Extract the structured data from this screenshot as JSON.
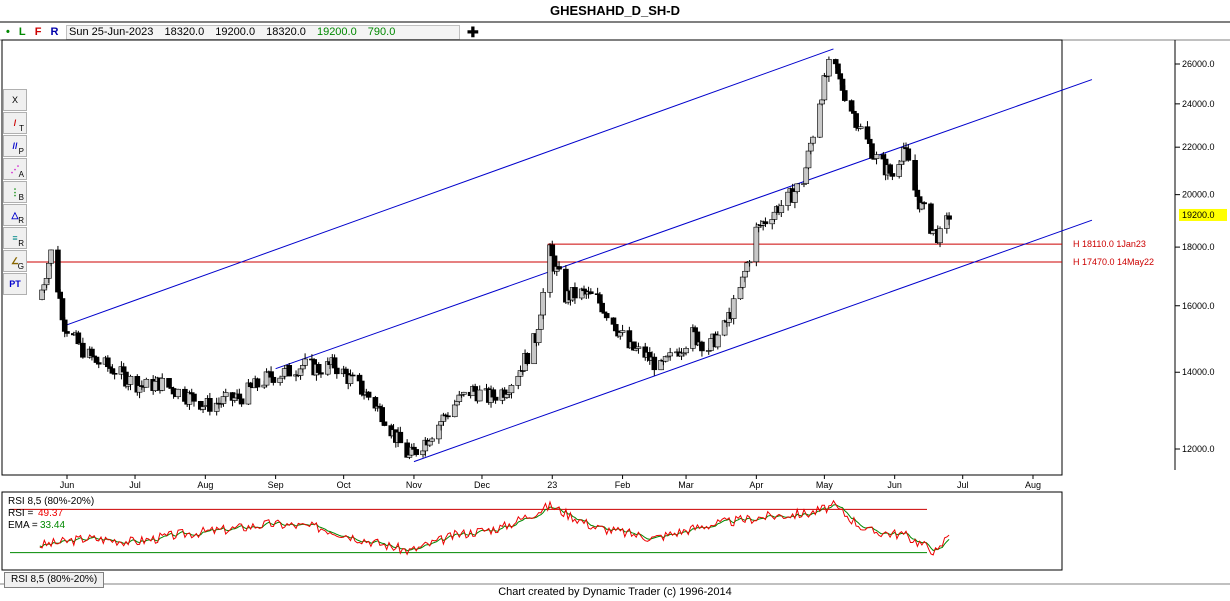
{
  "title": "GHESHAHD_D_SH-D",
  "info": {
    "indicators": [
      "L",
      "F",
      "R"
    ],
    "date": "Sun 25-Jun-2023",
    "open": "18320.0",
    "high": "19200.0",
    "low": "18320.0",
    "close": "19200.0",
    "volume": "790.0"
  },
  "toolbar": {
    "close_label": "X",
    "tools": [
      {
        "name": "trendline-tool",
        "glyph": "/",
        "sub": "T"
      },
      {
        "name": "parallel-tool",
        "glyph": "//",
        "sub": "P"
      },
      {
        "name": "andrews-tool",
        "glyph": "⋰",
        "sub": "A"
      },
      {
        "name": "fib-tool",
        "glyph": "⋮",
        "sub": "B"
      },
      {
        "name": "ratio-tool",
        "glyph": "△",
        "sub": "R"
      },
      {
        "name": "retrace-tool",
        "glyph": "≡",
        "sub": "R"
      },
      {
        "name": "gann-tool",
        "glyph": "∠",
        "sub": "G"
      },
      {
        "name": "pt-tool",
        "glyph": "PT",
        "sub": ""
      }
    ]
  },
  "colors": {
    "channel": "#0000cc",
    "hline": "#cc0000",
    "rsi": "#ee0000",
    "ema": "#008800",
    "current_price_bg": "#ffff00"
  },
  "chart_data": {
    "type": "candlestick",
    "title": "GHESHAHD_D_SH-D",
    "x_months": [
      "Jun",
      "Jul",
      "Aug",
      "Sep",
      "Oct",
      "Nov",
      "Dec",
      "23",
      "Feb",
      "Mar",
      "Apr",
      "May",
      "Jun",
      "Jul",
      "Aug"
    ],
    "y_ticks": [
      12000,
      14000,
      16000,
      18000,
      20000,
      22000,
      24000,
      26000
    ],
    "y_tick_labels": [
      "12000.0",
      "14000.0",
      "16000.0",
      "18000.0",
      "20000.0",
      "22000.0",
      "24000.0",
      "26000.0"
    ],
    "ylim": [
      11400,
      26800
    ],
    "log_scale": true,
    "current_price": 19200,
    "current_price_label": "19200.0",
    "close_path": [
      {
        "date": "2022-05-20",
        "close": 16200
      },
      {
        "date": "2022-05-25",
        "close": 17800
      },
      {
        "date": "2022-05-31",
        "close": 15400
      },
      {
        "date": "2022-06-07",
        "close": 14700
      },
      {
        "date": "2022-06-14",
        "close": 14300
      },
      {
        "date": "2022-06-21",
        "close": 14100
      },
      {
        "date": "2022-06-28",
        "close": 13800
      },
      {
        "date": "2022-07-05",
        "close": 13600
      },
      {
        "date": "2022-07-12",
        "close": 13700
      },
      {
        "date": "2022-07-19",
        "close": 13500
      },
      {
        "date": "2022-07-26",
        "close": 13300
      },
      {
        "date": "2022-08-02",
        "close": 13100
      },
      {
        "date": "2022-08-09",
        "close": 13200
      },
      {
        "date": "2022-08-16",
        "close": 13300
      },
      {
        "date": "2022-08-23",
        "close": 13600
      },
      {
        "date": "2022-08-30",
        "close": 13900
      },
      {
        "date": "2022-09-06",
        "close": 14000
      },
      {
        "date": "2022-09-13",
        "close": 14200
      },
      {
        "date": "2022-09-20",
        "close": 14100
      },
      {
        "date": "2022-09-27",
        "close": 14200
      },
      {
        "date": "2022-10-04",
        "close": 13800
      },
      {
        "date": "2022-10-11",
        "close": 13400
      },
      {
        "date": "2022-10-18",
        "close": 12900
      },
      {
        "date": "2022-10-25",
        "close": 12200
      },
      {
        "date": "2022-10-30",
        "close": 11800
      },
      {
        "date": "2022-11-06",
        "close": 12200
      },
      {
        "date": "2022-11-13",
        "close": 12700
      },
      {
        "date": "2022-11-20",
        "close": 13200
      },
      {
        "date": "2022-11-27",
        "close": 13500
      },
      {
        "date": "2022-12-04",
        "close": 13300
      },
      {
        "date": "2022-12-11",
        "close": 13500
      },
      {
        "date": "2022-12-18",
        "close": 14100
      },
      {
        "date": "2022-12-25",
        "close": 15000
      },
      {
        "date": "2022-12-31",
        "close": 17800
      },
      {
        "date": "2023-01-07",
        "close": 16300
      },
      {
        "date": "2023-01-14",
        "close": 16400
      },
      {
        "date": "2023-01-21",
        "close": 16200
      },
      {
        "date": "2023-01-28",
        "close": 15500
      },
      {
        "date": "2023-02-04",
        "close": 14700
      },
      {
        "date": "2023-02-11",
        "close": 14500
      },
      {
        "date": "2023-02-18",
        "close": 14100
      },
      {
        "date": "2023-02-25",
        "close": 14600
      },
      {
        "date": "2023-03-04",
        "close": 15100
      },
      {
        "date": "2023-03-11",
        "close": 14700
      },
      {
        "date": "2023-03-18",
        "close": 15300
      },
      {
        "date": "2023-03-25",
        "close": 16500
      },
      {
        "date": "2023-04-01",
        "close": 18600
      },
      {
        "date": "2023-04-08",
        "close": 19300
      },
      {
        "date": "2023-04-15",
        "close": 19800
      },
      {
        "date": "2023-04-22",
        "close": 20600
      },
      {
        "date": "2023-04-29",
        "close": 24200
      },
      {
        "date": "2023-05-04",
        "close": 26200
      },
      {
        "date": "2023-05-10",
        "close": 24500
      },
      {
        "date": "2023-05-17",
        "close": 22800
      },
      {
        "date": "2023-05-24",
        "close": 21500
      },
      {
        "date": "2023-05-31",
        "close": 20800
      },
      {
        "date": "2023-06-05",
        "close": 22000
      },
      {
        "date": "2023-06-09",
        "close": 20400
      },
      {
        "date": "2023-06-13",
        "close": 19500
      },
      {
        "date": "2023-06-18",
        "close": 18600
      },
      {
        "date": "2023-06-22",
        "close": 18300
      },
      {
        "date": "2023-06-25",
        "close": 19200
      }
    ],
    "channels": [
      {
        "from": {
          "date": "2022-06-01",
          "price": 15400
        },
        "to": {
          "date": "2023-05-05",
          "price": 26800
        }
      },
      {
        "from": {
          "date": "2022-09-01",
          "price": 14100
        },
        "to": {
          "date": "2023-08-27",
          "price": 25200
        }
      },
      {
        "from": {
          "date": "2022-11-01",
          "price": 11700
        },
        "to": {
          "date": "2023-08-27",
          "price": 19000
        }
      }
    ],
    "hlines": [
      {
        "value": 18110,
        "label": "H 18110.0 1Jan23",
        "from_date": "2022-12-30"
      },
      {
        "value": 17470,
        "label": "H 17470.0 14May22",
        "from_date": "2022-05-14"
      }
    ],
    "rsi": {
      "title": "RSI 8,5 (80%-20%)",
      "rsi_label": "RSI =",
      "rsi_value": "49.37",
      "ema_label": "EMA =",
      "ema_value": "33.44",
      "upper": 80,
      "lower": 20,
      "path": [
        {
          "date": "2022-05-20",
          "value": 30
        },
        {
          "date": "2022-06-10",
          "value": 40
        },
        {
          "date": "2022-07-01",
          "value": 35
        },
        {
          "date": "2022-07-20",
          "value": 45
        },
        {
          "date": "2022-08-10",
          "value": 52
        },
        {
          "date": "2022-08-30",
          "value": 60
        },
        {
          "date": "2022-09-20",
          "value": 55
        },
        {
          "date": "2022-10-10",
          "value": 38
        },
        {
          "date": "2022-10-30",
          "value": 22
        },
        {
          "date": "2022-11-20",
          "value": 45
        },
        {
          "date": "2022-12-10",
          "value": 55
        },
        {
          "date": "2022-12-31",
          "value": 85
        },
        {
          "date": "2023-01-20",
          "value": 55
        },
        {
          "date": "2023-02-15",
          "value": 40
        },
        {
          "date": "2023-03-10",
          "value": 58
        },
        {
          "date": "2023-04-05",
          "value": 70
        },
        {
          "date": "2023-04-25",
          "value": 75
        },
        {
          "date": "2023-05-05",
          "value": 85
        },
        {
          "date": "2023-05-20",
          "value": 50
        },
        {
          "date": "2023-06-05",
          "value": 45
        },
        {
          "date": "2023-06-20",
          "value": 20
        },
        {
          "date": "2023-06-25",
          "value": 49
        }
      ]
    }
  },
  "tab_label": "RSI 8,5 (80%-20%)",
  "footer": "Chart created by Dynamic Trader  (c)  1996-2014"
}
